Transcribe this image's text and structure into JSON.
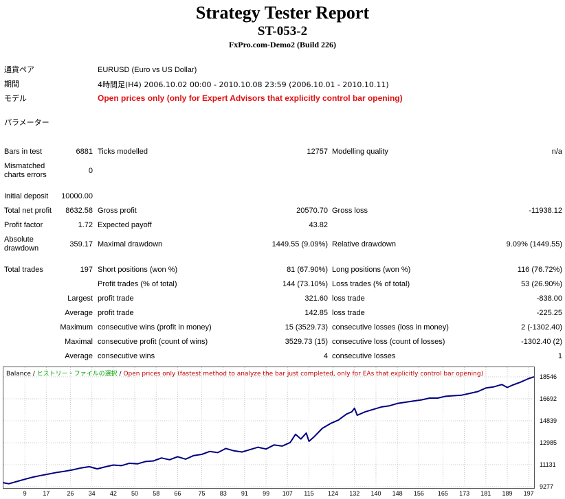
{
  "header": {
    "title": "Strategy Tester Report",
    "code": "ST-053-2",
    "server": "FxPro.com-Demo2 (Build 226)"
  },
  "info": {
    "symbol_label": "通貨ペア",
    "symbol_value": "EURUSD (Euro vs US Dollar)",
    "period_label": "期間",
    "period_value": "4時間足(H4) 2006.10.02 00:00 - 2010.10.08 23:59 (2006.10.01 - 2010.10.11)",
    "model_label": "モデル",
    "model_value": "Open prices only (only for Expert Advisors that explicitly control bar opening)",
    "params_label": "パラメーター"
  },
  "stats": {
    "bars_label": "Bars in test",
    "bars": "6881",
    "ticks_label": "Ticks modelled",
    "ticks": "12757",
    "quality_label": "Modelling quality",
    "quality": "n/a",
    "mismatch_label": "Mismatched charts errors",
    "mismatch": "0",
    "deposit_label": "Initial deposit",
    "deposit": "10000.00",
    "net_label": "Total net profit",
    "net": "8632.58",
    "gross_profit_label": "Gross profit",
    "gross_profit": "20570.70",
    "gross_loss_label": "Gross loss",
    "gross_loss": "-11938.12",
    "pf_label": "Profit factor",
    "pf": "1.72",
    "payoff_label": "Expected payoff",
    "payoff": "43.82",
    "abs_dd_label": "Absolute drawdown",
    "abs_dd": "359.17",
    "max_dd_label": "Maximal drawdown",
    "max_dd": "1449.55 (9.09%)",
    "rel_dd_label": "Relative drawdown",
    "rel_dd": "9.09% (1449.55)",
    "trades_label": "Total trades",
    "trades": "197",
    "short_label": "Short positions (won %)",
    "short": "81 (67.90%)",
    "long_label": "Long positions (won %)",
    "long": "116 (76.72%)",
    "profit_trades_label": "Profit trades (% of total)",
    "profit_trades": "144 (73.10%)",
    "loss_trades_label": "Loss trades (% of total)",
    "loss_trades": "53 (26.90%)",
    "largest_label": "Largest",
    "largest_pt_label": "profit trade",
    "largest_pt": "321.60",
    "largest_lt_label": "loss trade",
    "largest_lt": "-838.00",
    "average_label": "Average",
    "average_pt_label": "profit trade",
    "average_pt": "142.85",
    "average_lt_label": "loss trade",
    "average_lt": "-225.25",
    "maximum_label": "Maximum",
    "max_cw_label": "consecutive wins (profit in money)",
    "max_cw": "15 (3529.73)",
    "max_cl_label": "consecutive losses (loss in money)",
    "max_cl": "2 (-1302.40)",
    "maximal_label": "Maximal",
    "maximal_cp_label": "consecutive profit (count of wins)",
    "maximal_cp": "3529.73 (15)",
    "maximal_cl_label": "consecutive loss (count of losses)",
    "maximal_cl": "-1302.40 (2)",
    "avg2_label": "Average",
    "avg_cw_label": "consecutive wins",
    "avg_cw": "4",
    "avg_cl_label": "consecutive losses",
    "avg_cl": "1"
  },
  "chart_legend": {
    "balance": "Balance",
    "sep1": " / ",
    "history": "ヒストリー・ファイルの選択",
    "sep2": " / ",
    "note": "Open prices only (fastest method to analyze the bar just completed, only for EAs that explicitly control bar opening)"
  },
  "colors": {
    "model_text": "#e01010",
    "balance_line": "#000080",
    "history_text": "#00a000",
    "note_text": "#c00000"
  },
  "chart_data": {
    "type": "line",
    "series": [
      {
        "name": "Balance",
        "x": [
          0,
          3,
          6,
          9,
          12,
          15,
          18,
          21,
          24,
          27,
          30,
          33,
          36,
          39,
          42,
          45,
          48,
          51,
          54,
          57,
          60,
          63,
          66,
          69,
          72,
          75,
          78,
          81,
          84,
          87,
          90,
          93,
          96,
          99,
          102,
          105,
          108,
          110,
          112,
          114,
          115,
          117,
          120,
          123,
          126,
          129,
          131,
          132,
          133,
          136,
          139,
          142,
          145,
          148,
          151,
          154,
          157,
          160,
          163,
          166,
          169,
          172,
          175,
          178,
          181,
          184,
          187,
          189,
          191,
          194,
          197,
          199
        ],
        "y": [
          9650,
          9520,
          9710,
          9900,
          10080,
          10220,
          10350,
          10480,
          10580,
          10700,
          10860,
          10960,
          10780,
          10950,
          11100,
          11050,
          11250,
          11200,
          11400,
          11450,
          11700,
          11550,
          11800,
          11600,
          11900,
          12000,
          12250,
          12150,
          12500,
          12300,
          12200,
          12400,
          12600,
          12450,
          12800,
          12700,
          13000,
          13700,
          13300,
          13800,
          13100,
          13500,
          14200,
          14600,
          14900,
          15400,
          15600,
          15900,
          15300,
          15600,
          15800,
          16000,
          16100,
          16300,
          16400,
          16500,
          16600,
          16750,
          16750,
          16900,
          16950,
          17000,
          17150,
          17300,
          17600,
          17700,
          17900,
          17650,
          17850,
          18100,
          18400,
          18546
        ]
      }
    ],
    "x_ticks": [
      "9",
      "17",
      "26",
      "34",
      "42",
      "50",
      "58",
      "66",
      "75",
      "83",
      "91",
      "99",
      "107",
      "115",
      "124",
      "132",
      "140",
      "148",
      "156",
      "165",
      "173",
      "181",
      "189",
      "197"
    ],
    "y_ticks": [
      "9277",
      "11131",
      "12985",
      "14839",
      "16692",
      "18546"
    ],
    "xlim": [
      1,
      199
    ],
    "ylim": [
      9277,
      18546
    ]
  }
}
